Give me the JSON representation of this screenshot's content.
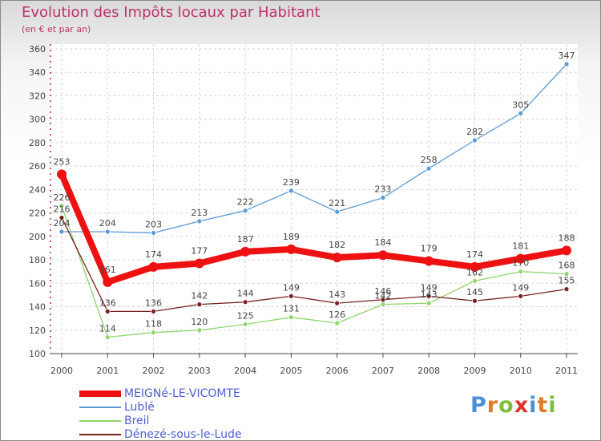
{
  "title": "Evolution des Impôts locaux par Habitant",
  "subtitle": "(en € et par an)",
  "logo": {
    "text": "Proxiti",
    "letter_colors": [
      "#4a90d6",
      "#e07b2a",
      "#7bbf3a",
      "#e0342a",
      "#4a90d6",
      "#e07b2a",
      "#7bbf3a"
    ]
  },
  "chart_data": {
    "type": "line",
    "title": "Evolution des Impôts locaux par Habitant",
    "ylabel": "(en € et par an)",
    "xlabel": "",
    "ylim": [
      100,
      360
    ],
    "yticks": [
      100,
      120,
      140,
      160,
      180,
      200,
      220,
      240,
      260,
      280,
      300,
      320,
      340,
      360
    ],
    "grid": true,
    "legend_position": "bottom-left",
    "x": [
      "2000",
      "2001",
      "2002",
      "2003",
      "2004",
      "2005",
      "2006",
      "2007",
      "2008",
      "2009",
      "2010",
      "2011"
    ],
    "series": [
      {
        "name": "MEIGNé-LE-VICOMTE",
        "color": "#ee1111",
        "emphasis": true,
        "values": [
          253,
          161,
          174,
          177,
          187,
          189,
          182,
          184,
          179,
          174,
          181,
          188
        ],
        "labels": [
          "253",
          "161",
          "174",
          "177",
          "187",
          "189",
          "182",
          "184",
          "179",
          "174",
          "181",
          "188"
        ]
      },
      {
        "name": "Lublé",
        "color": "#5b9bd5",
        "emphasis": false,
        "values": [
          204,
          204,
          203,
          213,
          222,
          239,
          221,
          233,
          258,
          282,
          305,
          347
        ],
        "labels": [
          "204",
          "204",
          "203",
          "213",
          "222",
          "239",
          "221",
          "233",
          "258",
          "282",
          "305",
          "347"
        ]
      },
      {
        "name": "Breil",
        "color": "#8fd66b",
        "emphasis": false,
        "values": [
          226,
          114,
          118,
          120,
          125,
          131,
          126,
          142,
          143,
          162,
          170,
          168
        ],
        "labels": [
          "226",
          "114",
          "118",
          "120",
          "125",
          "131",
          "126",
          "142",
          "143",
          "162",
          "170",
          "168"
        ]
      },
      {
        "name": "Dénezé-sous-le-Lude",
        "color": "#7a2020",
        "emphasis": false,
        "values": [
          216,
          136,
          136,
          142,
          144,
          149,
          143,
          146,
          149,
          145,
          149,
          155
        ],
        "labels": [
          "216",
          "136",
          "136",
          "142",
          "144",
          "149",
          "143",
          "146",
          "149",
          "145",
          "149",
          "155"
        ]
      }
    ]
  }
}
